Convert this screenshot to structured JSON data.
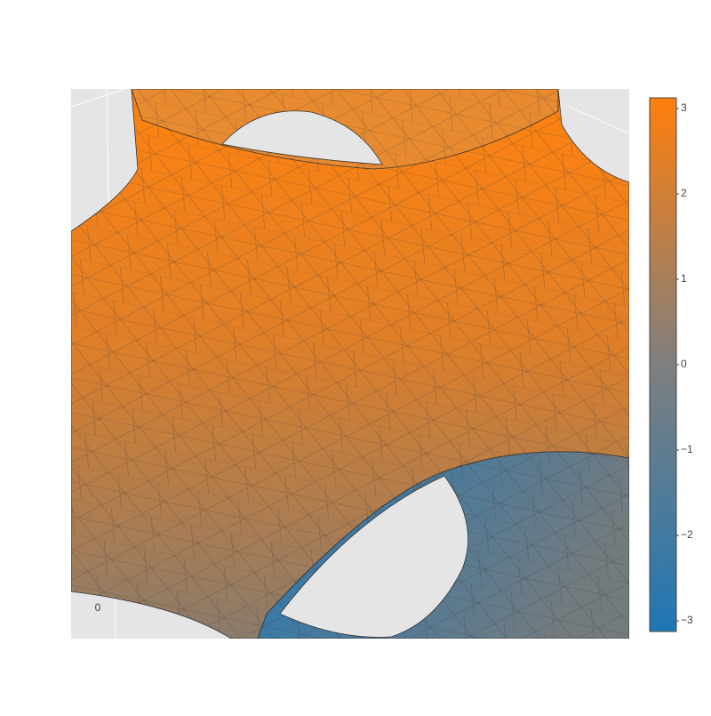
{
  "chart_data": {
    "type": "isosurface",
    "colorscale": [
      {
        "stop": 0,
        "color": "#1f77b4"
      },
      {
        "stop": 0.5,
        "color": "#7f7f7f"
      },
      {
        "stop": 1,
        "color": "#ff7f0e"
      }
    ],
    "clim": [
      -3.125,
      3.125
    ],
    "cticks": [
      3,
      2,
      1,
      0,
      {
        "value": -1,
        "label": "−1"
      },
      {
        "value": -2,
        "label": "−2"
      },
      {
        "value": -3,
        "label": "−3"
      }
    ],
    "scene_tick": 0
  }
}
